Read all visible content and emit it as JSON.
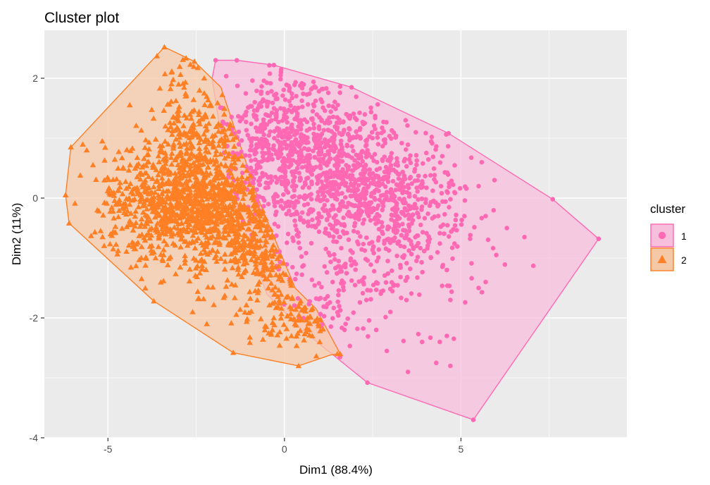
{
  "chart_data": {
    "type": "scatter",
    "title": "Cluster plot",
    "xlabel": "Dim1 (88.4%)",
    "ylabel": "Dim2 (11%)",
    "xlim": [
      -6.8,
      9.7
    ],
    "ylim": [
      -4.0,
      2.8
    ],
    "x_ticks": [
      -5,
      0,
      5
    ],
    "x_tick_labels": [
      "-5",
      "0",
      "5"
    ],
    "y_ticks": [
      -4,
      -2,
      0,
      2
    ],
    "y_tick_labels": [
      "-4",
      "-2",
      "0",
      "2"
    ],
    "grid": true,
    "legend": {
      "title": "cluster",
      "position": "right",
      "entries": [
        {
          "label": "1",
          "shape": "circle"
        },
        {
          "label": "2",
          "shape": "triangle"
        }
      ]
    },
    "colors": {
      "panel_bg": "#ebebeb",
      "grid": "#ffffff",
      "cluster1": "#ff69b4",
      "cluster2": "#ff7f24",
      "cluster1_fill": "#f8bfdc",
      "cluster2_fill": "#f5c9a8"
    },
    "series": [
      {
        "name": "1",
        "shape": "circle",
        "hull": [
          [
            -1.95,
            2.3
          ],
          [
            -1.35,
            2.3
          ],
          [
            -0.3,
            2.22
          ],
          [
            1.9,
            1.85
          ],
          [
            4.65,
            1.08
          ],
          [
            7.6,
            -0.02
          ],
          [
            8.9,
            -0.68
          ],
          [
            5.35,
            -3.7
          ],
          [
            2.35,
            -3.08
          ],
          [
            0.5,
            -2.2
          ],
          [
            -0.5,
            -1.6
          ],
          [
            -1.6,
            0.3
          ],
          [
            -2.05,
            2.0
          ]
        ],
        "points": [
          [
            -1.95,
            2.3
          ],
          [
            -1.35,
            2.3
          ],
          [
            -0.3,
            2.22
          ],
          [
            1.9,
            1.85
          ],
          [
            4.65,
            1.08
          ],
          [
            7.6,
            -0.02
          ],
          [
            8.9,
            -0.68
          ],
          [
            5.35,
            -3.7
          ],
          [
            2.35,
            -3.08
          ],
          [
            7.05,
            -1.13
          ],
          [
            6.8,
            -0.65
          ],
          [
            6.3,
            -0.5
          ],
          [
            6.0,
            -0.95
          ],
          [
            5.7,
            -1.4
          ],
          [
            5.5,
            -1.5
          ],
          [
            5.1,
            -0.3
          ],
          [
            4.7,
            -1.7
          ],
          [
            4.6,
            -1.2
          ],
          [
            4.4,
            -2.4
          ],
          [
            4.6,
            -2.3
          ],
          [
            4.3,
            -2.75
          ],
          [
            4.7,
            -2.8
          ],
          [
            3.5,
            -2.9
          ],
          [
            3.9,
            -2.4
          ],
          [
            2.9,
            -2.55
          ],
          [
            2.6,
            -2.2
          ],
          [
            3.0,
            -1.9
          ],
          [
            5.7,
            -0.3
          ],
          [
            5.95,
            0.3
          ],
          [
            5.5,
            0.2
          ]
        ],
        "clusters": [
          {
            "center": [
              0.2,
              0.55
            ],
            "spread": [
              1.1,
              0.55
            ],
            "count": 480
          },
          {
            "center": [
              1.8,
              0.2
            ],
            "spread": [
              1.2,
              0.5
            ],
            "count": 380
          },
          {
            "center": [
              2.9,
              0.0
            ],
            "spread": [
              1.1,
              0.65
            ],
            "count": 280
          },
          {
            "center": [
              3.8,
              -0.6
            ],
            "spread": [
              0.9,
              0.7
            ],
            "count": 130
          },
          {
            "center": [
              1.5,
              -1.2
            ],
            "spread": [
              1.0,
              0.65
            ],
            "count": 150
          },
          {
            "center": [
              -0.5,
              1.3
            ],
            "spread": [
              0.7,
              0.45
            ],
            "count": 110
          },
          {
            "center": [
              0.8,
              1.3
            ],
            "spread": [
              1.0,
              0.4
            ],
            "count": 110
          }
        ]
      },
      {
        "name": "2",
        "shape": "triangle",
        "hull": [
          [
            -3.4,
            2.52
          ],
          [
            -2.55,
            2.28
          ],
          [
            -1.8,
            1.85
          ],
          [
            -0.75,
            0.0
          ],
          [
            0.3,
            -1.5
          ],
          [
            0.9,
            -1.85
          ],
          [
            1.58,
            -2.6
          ],
          [
            1.5,
            -2.6
          ],
          [
            1.3,
            -2.62
          ],
          [
            0.4,
            -2.8
          ],
          [
            -1.45,
            -2.58
          ],
          [
            -3.7,
            -1.72
          ],
          [
            -6.1,
            -0.42
          ],
          [
            -6.2,
            0.05
          ],
          [
            -6.05,
            0.85
          ]
        ],
        "points": [
          [
            -3.4,
            2.52
          ],
          [
            -2.55,
            2.28
          ],
          [
            -6.05,
            0.85
          ],
          [
            -6.2,
            0.05
          ],
          [
            -6.1,
            -0.42
          ],
          [
            -3.7,
            -1.72
          ],
          [
            -1.45,
            -2.58
          ],
          [
            0.4,
            -2.8
          ],
          [
            1.5,
            -2.6
          ],
          [
            1.58,
            -2.6
          ],
          [
            -5.6,
            0.8
          ],
          [
            -5.1,
            0.3
          ],
          [
            -5.3,
            -0.2
          ],
          [
            -4.85,
            -0.85
          ],
          [
            -4.9,
            0.1
          ],
          [
            -3.2,
            2.1
          ],
          [
            -3.0,
            1.9
          ],
          [
            -2.8,
            1.7
          ],
          [
            1.0,
            -2.4
          ],
          [
            0.7,
            -2.2
          ],
          [
            0.2,
            -2.3
          ],
          [
            -0.3,
            -2.0
          ],
          [
            -2.2,
            -2.1
          ],
          [
            -2.6,
            -1.9
          ]
        ],
        "clusters": [
          {
            "center": [
              -2.5,
              -0.05
            ],
            "spread": [
              0.95,
              0.45
            ],
            "count": 540
          },
          {
            "center": [
              -3.5,
              0.0
            ],
            "spread": [
              0.8,
              0.45
            ],
            "count": 260
          },
          {
            "center": [
              -1.5,
              -0.5
            ],
            "spread": [
              0.7,
              0.5
            ],
            "count": 260
          },
          {
            "center": [
              -0.5,
              -1.2
            ],
            "spread": [
              0.6,
              0.5
            ],
            "count": 140
          },
          {
            "center": [
              -2.8,
              1.3
            ],
            "spread": [
              0.5,
              0.55
            ],
            "count": 130
          },
          {
            "center": [
              -1.9,
              0.9
            ],
            "spread": [
              0.55,
              0.5
            ],
            "count": 110
          },
          {
            "center": [
              -4.2,
              -0.5
            ],
            "spread": [
              0.7,
              0.55
            ],
            "count": 80
          },
          {
            "center": [
              0.4,
              -2.0
            ],
            "spread": [
              0.5,
              0.35
            ],
            "count": 70
          }
        ]
      }
    ]
  }
}
